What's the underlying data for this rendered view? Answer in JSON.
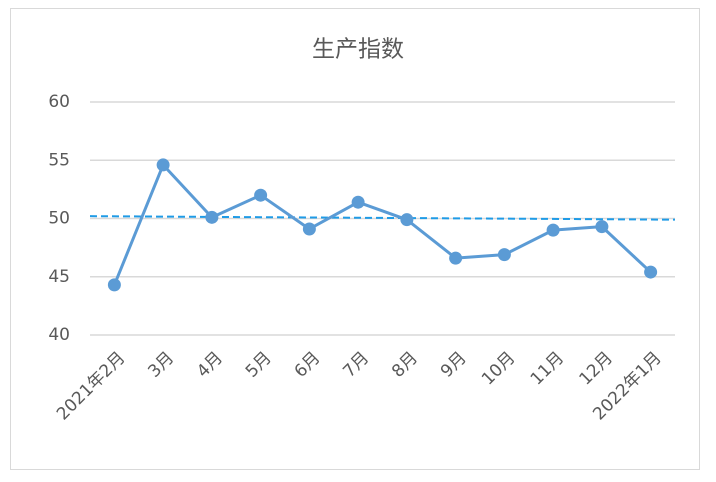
{
  "chart_data": {
    "type": "line",
    "title": "生产指数",
    "categories": [
      "2021年2月",
      "3月",
      "4月",
      "5月",
      "6月",
      "7月",
      "8月",
      "9月",
      "10月",
      "11月",
      "12月",
      "2022年1月"
    ],
    "series": [
      {
        "color": "#5b9bd5",
        "values": [
          44.3,
          54.6,
          50.1,
          52.0,
          49.1,
          51.4,
          49.9,
          46.6,
          46.9,
          49.0,
          49.3,
          45.4
        ]
      }
    ],
    "reference_line": {
      "start": 50.2,
      "end": 49.9,
      "color": "#1f9be6",
      "dashed": true
    },
    "ylim": [
      40,
      60
    ],
    "yticks": [
      40,
      45,
      50,
      55,
      60
    ],
    "grid": true
  }
}
